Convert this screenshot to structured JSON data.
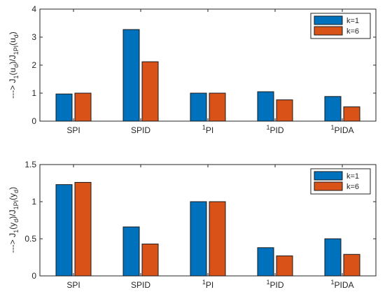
{
  "chart_data": [
    {
      "type": "bar",
      "categories": [
        {
          "base": "SPI",
          "sup": ""
        },
        {
          "base": "SPID",
          "sup": ""
        },
        {
          "base": "PI",
          "sup": "1"
        },
        {
          "base": "PID",
          "sup": "1"
        },
        {
          "base": "PIDA",
          "sup": "1"
        }
      ],
      "series": [
        {
          "name": "k=1",
          "color": "#0072BD",
          "values": [
            0.97,
            3.27,
            1.0,
            1.05,
            0.88
          ]
        },
        {
          "name": "k=6",
          "color": "#D95319",
          "values": [
            1.0,
            2.12,
            1.0,
            0.76,
            0.51
          ]
        }
      ],
      "ylim": [
        0,
        4
      ],
      "yticks": [
        0,
        1,
        2,
        3,
        4
      ],
      "ylabel": {
        "prefix": "---> J",
        "sub1": "1",
        "mid1": "(u",
        "sub2": "d",
        "mid2": ")/J",
        "sub3": "1PI",
        "mid3": "(u",
        "sub4": "d",
        "suffix": ")"
      },
      "legend_placement": "top-right",
      "grid": false
    },
    {
      "type": "bar",
      "categories": [
        {
          "base": "SPI",
          "sup": ""
        },
        {
          "base": "SPID",
          "sup": ""
        },
        {
          "base": "PI",
          "sup": "1"
        },
        {
          "base": "PID",
          "sup": "1"
        },
        {
          "base": "PIDA",
          "sup": "1"
        }
      ],
      "series": [
        {
          "name": "k=1",
          "color": "#0072BD",
          "values": [
            1.23,
            0.66,
            1.0,
            0.38,
            0.5
          ]
        },
        {
          "name": "k=6",
          "color": "#D95319",
          "values": [
            1.26,
            0.43,
            1.0,
            0.27,
            0.29
          ]
        }
      ],
      "ylim": [
        0,
        1.5
      ],
      "yticks": [
        0,
        0.5,
        1,
        1.5
      ],
      "ylabel": {
        "prefix": "---> J",
        "sub1": "1",
        "mid1": "(y",
        "sub2": "d",
        "mid2": ")/J",
        "sub3": "1PI",
        "mid3": "(y",
        "sub4": "d",
        "suffix": ")"
      },
      "legend_placement": "top-right",
      "grid": false
    }
  ]
}
